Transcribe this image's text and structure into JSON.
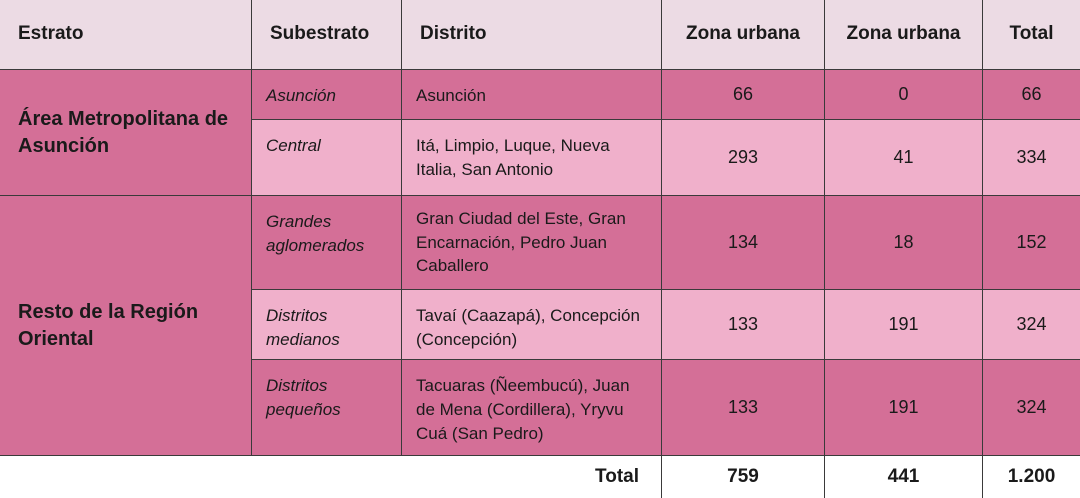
{
  "header": {
    "estrato": "Estrato",
    "subestrato": "Subestrato",
    "distrito": "Distrito",
    "zona_urbana_1": "Zona urbana",
    "zona_urbana_2": "Zona urbana",
    "total": "Total"
  },
  "groups": [
    {
      "estrato": "Área Metropolitana de Asunción"
    },
    {
      "estrato": "Resto de la Región Oriental"
    }
  ],
  "rows": [
    {
      "subestrato": "Asunción",
      "distrito": "Asunción",
      "zona1": "66",
      "zona2": "0",
      "total": "66"
    },
    {
      "subestrato": "Central",
      "distrito": "Itá, Limpio, Luque, Nueva Italia, San Antonio",
      "zona1": "293",
      "zona2": "41",
      "total": "334"
    },
    {
      "subestrato": "Grandes aglomerados",
      "distrito": "Gran Ciudad del Este, Gran Encarnación, Pedro Juan Caballero",
      "zona1": "134",
      "zona2": "18",
      "total": "152"
    },
    {
      "subestrato": "Distritos medianos",
      "distrito": "Tavaí (Caazapá), Concepción (Concepción)",
      "zona1": "133",
      "zona2": "191",
      "total": "324"
    },
    {
      "subestrato": "Distritos pequeños",
      "distrito": "Tacuaras (Ñeembucú), Juan de Mena (Cordillera), Yryvu Cuá (San Pedro)",
      "zona1": "133",
      "zona2": "191",
      "total": "324"
    }
  ],
  "footer": {
    "label": "Total",
    "zona1": "759",
    "zona2": "441",
    "total": "1.200"
  },
  "colors": {
    "header_bg": "#ecdbe4",
    "dark_row": "#d46f97",
    "light_row": "#f0b0cb",
    "border": "#3a3a3a"
  }
}
